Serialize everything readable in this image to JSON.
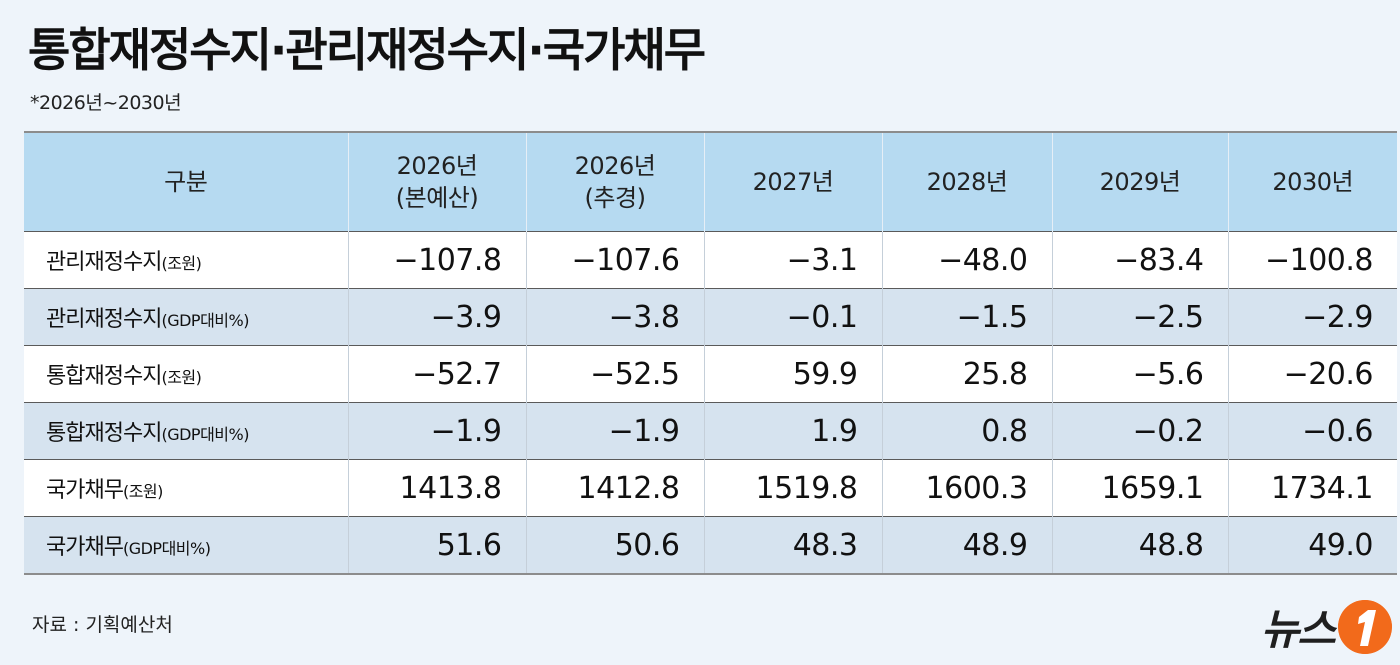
{
  "header": {
    "title": "통합재정수지·관리재정수지·국가채무",
    "subtitle": "*2026년~2030년"
  },
  "table": {
    "columns": [
      {
        "line1": "구분",
        "line2": ""
      },
      {
        "line1": "2026년",
        "line2": "(본예산)"
      },
      {
        "line1": "2026년",
        "line2": "(추경)"
      },
      {
        "line1": "2027년",
        "line2": ""
      },
      {
        "line1": "2028년",
        "line2": ""
      },
      {
        "line1": "2029년",
        "line2": ""
      },
      {
        "line1": "2030년",
        "line2": ""
      }
    ],
    "rows": [
      {
        "label": "관리재정수지",
        "unit": "(조원)",
        "values": [
          "−107.8",
          "−107.6",
          "−3.1",
          "−48.0",
          "−83.4",
          "−100.8"
        ]
      },
      {
        "label": "관리재정수지",
        "unit": "(GDP대비%)",
        "values": [
          "−3.9",
          "−3.8",
          "−0.1",
          "−1.5",
          "−2.5",
          "−2.9"
        ]
      },
      {
        "label": "통합재정수지",
        "unit": "(조원)",
        "values": [
          "−52.7",
          "−52.5",
          "59.9",
          "25.8",
          "−5.6",
          "−20.6"
        ]
      },
      {
        "label": "통합재정수지",
        "unit": "(GDP대비%)",
        "values": [
          "−1.9",
          "−1.9",
          "1.9",
          "0.8",
          "−0.2",
          "−0.6"
        ]
      },
      {
        "label": "국가채무",
        "unit": "(조원)",
        "values": [
          "1413.8",
          "1412.8",
          "1519.8",
          "1600.3",
          "1659.1",
          "1734.1"
        ]
      },
      {
        "label": "국가채무",
        "unit": "(GDP대비%)",
        "values": [
          "51.6",
          "50.6",
          "48.3",
          "48.9",
          "48.8",
          "49.0"
        ]
      }
    ]
  },
  "footer": {
    "source": "자료 : 기획예산처",
    "logo_text": "뉴스",
    "logo_badge": "1"
  },
  "colors": {
    "background": "#eef4fa",
    "header_fill": "#b6daf1",
    "row_alt_fill": "#d6e3ef",
    "logo_orange": "#f26a1b"
  }
}
